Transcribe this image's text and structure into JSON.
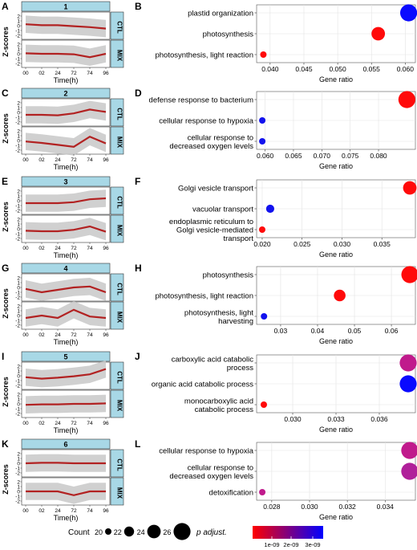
{
  "axis_common": {
    "zscore_label": "Z-scores",
    "time_label": "Time(h)",
    "gene_ratio_label": "Gene ratio",
    "time_ticks": [
      "00",
      "02",
      "24",
      "72",
      "74",
      "96"
    ],
    "z_ticks": [
      "2",
      "1",
      "0",
      "-1",
      "-2"
    ],
    "strip_ctl": "CTL",
    "strip_mix": "MIX"
  },
  "legend": {
    "count_title": "Count",
    "count_values": [
      "20",
      "22",
      "24",
      "26"
    ],
    "padj_title": "p adjust.",
    "padj_ticks": [
      "1e-09",
      "2e-09",
      "3e-09"
    ],
    "gradient_low": "#ff0000",
    "gradient_high": "#0000ff"
  },
  "colors": {
    "strip_fill": "#a8d8e6",
    "line": "#b22222",
    "band": "#c8c8c8",
    "red": "#ff0000",
    "blue": "#0000ff",
    "magenta": "#c01a8c"
  },
  "chart_data": [
    {
      "type": "line",
      "panel": "A",
      "cluster": "1",
      "x": [
        "00",
        "02",
        "24",
        "72",
        "74",
        "96"
      ],
      "series": [
        {
          "name": "CTL",
          "values": [
            0.3,
            0.1,
            0.1,
            -0.1,
            -0.3,
            -0.6
          ]
        },
        {
          "name": "MIX",
          "values": [
            0.1,
            0.0,
            0.0,
            -0.1,
            -0.7,
            0.0
          ]
        }
      ]
    },
    {
      "type": "scatter",
      "panel": "B",
      "xlim": [
        0.038,
        0.0615
      ],
      "xticks": [
        "0.040",
        "0.045",
        "0.050",
        "0.055",
        "0.060"
      ],
      "points": [
        {
          "term": "plastid organization",
          "gene_ratio": 0.0605,
          "count": 26,
          "color": "#0a0aff"
        },
        {
          "term": "photosynthesis",
          "gene_ratio": 0.056,
          "count": 24,
          "color": "#ff0a0a"
        },
        {
          "term": "photosynthesis, light reaction",
          "gene_ratio": 0.039,
          "count": 20,
          "color": "#ff0a0a"
        }
      ]
    },
    {
      "type": "line",
      "panel": "C",
      "cluster": "2",
      "x": [
        "00",
        "02",
        "24",
        "72",
        "74",
        "96"
      ],
      "series": [
        {
          "name": "CTL",
          "values": [
            -0.5,
            -0.5,
            -0.6,
            -0.2,
            0.6,
            0.1
          ]
        },
        {
          "name": "MIX",
          "values": [
            -0.2,
            -0.5,
            -0.9,
            -1.3,
            0.8,
            -0.6
          ]
        }
      ]
    },
    {
      "type": "scatter",
      "panel": "D",
      "xlim": [
        0.0585,
        0.0865
      ],
      "xticks": [
        "0.060",
        "0.065",
        "0.070",
        "0.075",
        "0.080"
      ],
      "points": [
        {
          "term": "defense response to bacterium",
          "gene_ratio": 0.085,
          "count": 26,
          "color": "#ff0a0a"
        },
        {
          "term": "cellular response to hypoxia",
          "gene_ratio": 0.0595,
          "count": 20,
          "color": "#1212ee"
        },
        {
          "term": "cellular response to\ndecreased oxygen levels",
          "gene_ratio": 0.0595,
          "count": 20,
          "color": "#1212ee"
        }
      ]
    },
    {
      "type": "line",
      "panel": "E",
      "cluster": "3",
      "x": [
        "00",
        "02",
        "24",
        "72",
        "74",
        "96"
      ],
      "series": [
        {
          "name": "CTL",
          "values": [
            -0.5,
            -0.5,
            -0.5,
            -0.3,
            0.3,
            0.5
          ]
        },
        {
          "name": "MIX",
          "values": [
            -0.4,
            -0.5,
            -0.5,
            -0.2,
            0.5,
            -0.6
          ]
        }
      ]
    },
    {
      "type": "scatter",
      "panel": "F",
      "xlim": [
        0.0193,
        0.0392
      ],
      "xticks": [
        "0.020",
        "0.025",
        "0.030",
        "0.035"
      ],
      "points": [
        {
          "term": "Golgi vesicle transport",
          "gene_ratio": 0.0385,
          "count": 24,
          "color": "#ff0a0a"
        },
        {
          "term": "vacuolar transport",
          "gene_ratio": 0.021,
          "count": 21,
          "color": "#1212ee"
        },
        {
          "term": "endoplasmic reticulum to\nGolgi vesicle-mediated\ntransport",
          "gene_ratio": 0.02,
          "count": 20,
          "color": "#ff0a0a"
        }
      ]
    },
    {
      "type": "line",
      "panel": "G",
      "cluster": "4",
      "x": [
        "00",
        "02",
        "24",
        "72",
        "74",
        "96"
      ],
      "series": [
        {
          "name": "CTL",
          "values": [
            -0.3,
            -1.0,
            -0.5,
            0.0,
            0.2,
            -1.0
          ]
        },
        {
          "name": "MIX",
          "values": [
            -0.5,
            0.0,
            -0.5,
            1.2,
            -0.2,
            -0.5
          ]
        }
      ]
    },
    {
      "type": "scatter",
      "panel": "H",
      "xlim": [
        0.0235,
        0.0665
      ],
      "xticks": [
        "0.03",
        "0.04",
        "0.05",
        "0.06"
      ],
      "points": [
        {
          "term": "photosynthesis",
          "gene_ratio": 0.065,
          "count": 26,
          "color": "#ff0a0a"
        },
        {
          "term": "photosynthesis, light reaction",
          "gene_ratio": 0.046,
          "count": 23,
          "color": "#ff0a0a"
        },
        {
          "term": "photosynthesis, light\nharvesting",
          "gene_ratio": 0.0255,
          "count": 20,
          "color": "#1212ee"
        }
      ]
    },
    {
      "type": "line",
      "panel": "I",
      "cluster": "5",
      "x": [
        "00",
        "02",
        "24",
        "72",
        "74",
        "96"
      ],
      "series": [
        {
          "name": "CTL",
          "values": [
            -0.3,
            -0.6,
            -0.4,
            -0.1,
            0.3,
            1.4
          ]
        },
        {
          "name": "MIX",
          "values": [
            -0.2,
            -0.1,
            -0.1,
            0.0,
            0.0,
            0.1
          ]
        }
      ]
    },
    {
      "type": "scatter",
      "panel": "J",
      "xlim": [
        0.0275,
        0.0385
      ],
      "xticks": [
        "0.030",
        "0.033",
        "0.036"
      ],
      "points": [
        {
          "term": "carboxylic acid catabolic\nprocess",
          "gene_ratio": 0.038,
          "count": 26,
          "color": "#c01a8c"
        },
        {
          "term": "organic acid catabolic process",
          "gene_ratio": 0.038,
          "count": 26,
          "color": "#0a0aff"
        },
        {
          "term": "monocarboxylic acid\ncatabolic process",
          "gene_ratio": 0.028,
          "count": 20,
          "color": "#ff0a0a"
        }
      ]
    },
    {
      "type": "line",
      "panel": "K",
      "cluster": "6",
      "x": [
        "00",
        "02",
        "24",
        "72",
        "74",
        "96"
      ],
      "series": [
        {
          "name": "CTL",
          "values": [
            0.0,
            0.1,
            0.1,
            0.0,
            0.0,
            0.0
          ]
        },
        {
          "name": "MIX",
          "values": [
            0.0,
            0.0,
            0.0,
            -0.8,
            0.0,
            0.0
          ]
        }
      ]
    },
    {
      "type": "scatter",
      "panel": "L",
      "xlim": [
        0.0272,
        0.0356
      ],
      "xticks": [
        "0.028",
        "0.030",
        "0.032",
        "0.034"
      ],
      "points": [
        {
          "term": "cellular response to hypoxia",
          "gene_ratio": 0.0353,
          "count": 26,
          "color": "#c01a8c"
        },
        {
          "term": "cellular response to\ndecreased oxygen levels",
          "gene_ratio": 0.0353,
          "count": 26,
          "color": "#b0209a"
        },
        {
          "term": "detoxification",
          "gene_ratio": 0.0275,
          "count": 20,
          "color": "#c01a8c"
        }
      ]
    }
  ]
}
